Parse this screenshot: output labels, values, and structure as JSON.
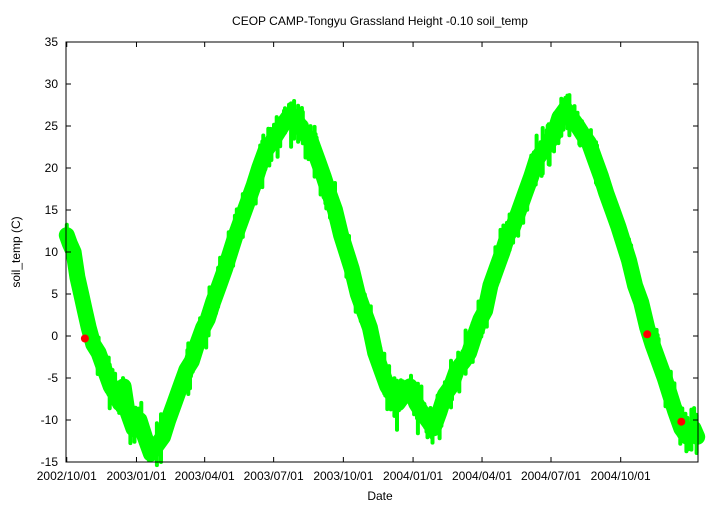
{
  "chart_data": {
    "type": "scatter",
    "title": "CEOP CAMP-Tongyu Grassland Height -0.10 soil_temp",
    "xlabel": "Date",
    "ylabel": "soil_temp (C)",
    "ylim": [
      -15,
      35
    ],
    "yticks": [
      -15,
      -10,
      -5,
      0,
      5,
      10,
      15,
      20,
      25,
      30,
      35
    ],
    "xlim": [
      "2002-09-30",
      "2005-01-11"
    ],
    "xticks": [
      "2002/10/01",
      "2003/01/01",
      "2003/04/01",
      "2003/07/01",
      "2003/10/01",
      "2004/01/01",
      "2004/04/01",
      "2004/07/01",
      "2004/10/01"
    ],
    "grid": false,
    "legend": "none",
    "colors": {
      "main": "#00ff00",
      "flagged": "#ff0000"
    },
    "series": [
      {
        "color": "#00ff00",
        "points": [
          [
            "2002-10-01",
            12
          ],
          [
            "2002-10-05",
            11
          ],
          [
            "2002-10-10",
            10
          ],
          [
            "2002-10-15",
            7
          ],
          [
            "2002-10-20",
            5
          ],
          [
            "2002-10-25",
            3
          ],
          [
            "2002-10-30",
            1
          ],
          [
            "2002-11-05",
            -1
          ],
          [
            "2002-11-12",
            -2
          ],
          [
            "2002-11-20",
            -4
          ],
          [
            "2002-11-28",
            -6
          ],
          [
            "2002-12-05",
            -7
          ],
          [
            "2002-12-10",
            -8
          ],
          [
            "2002-12-15",
            -6
          ],
          [
            "2002-12-20",
            -9
          ],
          [
            "2002-12-28",
            -11
          ],
          [
            "2003-01-05",
            -10
          ],
          [
            "2003-01-12",
            -12
          ],
          [
            "2003-01-20",
            -14
          ],
          [
            "2003-02-05",
            -12
          ],
          [
            "2003-02-12",
            -10
          ],
          [
            "2003-02-20",
            -8
          ],
          [
            "2003-02-28",
            -6
          ],
          [
            "2003-03-08",
            -4
          ],
          [
            "2003-03-15",
            -3
          ],
          [
            "2003-03-22",
            -1
          ],
          [
            "2003-03-30",
            1
          ],
          [
            "2003-04-05",
            2
          ],
          [
            "2003-04-12",
            4
          ],
          [
            "2003-04-20",
            6
          ],
          [
            "2003-04-28",
            8
          ],
          [
            "2003-05-05",
            10
          ],
          [
            "2003-05-12",
            12
          ],
          [
            "2003-05-20",
            14
          ],
          [
            "2003-05-28",
            16
          ],
          [
            "2003-06-05",
            18
          ],
          [
            "2003-06-12",
            20
          ],
          [
            "2003-06-20",
            22
          ],
          [
            "2003-06-28",
            23
          ],
          [
            "2003-07-05",
            24
          ],
          [
            "2003-07-12",
            25
          ],
          [
            "2003-07-20",
            26
          ],
          [
            "2003-07-28",
            26
          ],
          [
            "2003-08-05",
            25
          ],
          [
            "2003-08-12",
            24
          ],
          [
            "2003-08-20",
            23
          ],
          [
            "2003-08-28",
            21
          ],
          [
            "2003-09-05",
            19
          ],
          [
            "2003-09-12",
            17
          ],
          [
            "2003-09-20",
            15
          ],
          [
            "2003-09-28",
            12
          ],
          [
            "2003-10-05",
            10
          ],
          [
            "2003-10-12",
            8
          ],
          [
            "2003-10-20",
            5
          ],
          [
            "2003-10-28",
            3
          ],
          [
            "2003-11-05",
            1
          ],
          [
            "2003-11-12",
            -2
          ],
          [
            "2003-11-20",
            -4
          ],
          [
            "2003-11-28",
            -6
          ],
          [
            "2003-12-05",
            -7
          ],
          [
            "2003-12-12",
            -8
          ],
          [
            "2003-12-20",
            -7
          ],
          [
            "2003-12-28",
            -6
          ],
          [
            "2004-01-05",
            -8
          ],
          [
            "2004-01-12",
            -9
          ],
          [
            "2004-01-20",
            -10
          ],
          [
            "2004-01-28",
            -11
          ],
          [
            "2004-02-05",
            -9
          ],
          [
            "2004-02-12",
            -7
          ],
          [
            "2004-02-20",
            -6
          ],
          [
            "2004-02-28",
            -4
          ],
          [
            "2004-03-08",
            -3
          ],
          [
            "2004-03-15",
            -2
          ],
          [
            "2004-03-22",
            0
          ],
          [
            "2004-03-30",
            2
          ],
          [
            "2004-04-05",
            3
          ],
          [
            "2004-04-12",
            6
          ],
          [
            "2004-04-20",
            8
          ],
          [
            "2004-04-28",
            10
          ],
          [
            "2004-05-05",
            12
          ],
          [
            "2004-05-12",
            13
          ],
          [
            "2004-05-20",
            15
          ],
          [
            "2004-05-28",
            17
          ],
          [
            "2004-06-05",
            19
          ],
          [
            "2004-06-12",
            21
          ],
          [
            "2004-06-20",
            22
          ],
          [
            "2004-06-28",
            23
          ],
          [
            "2004-07-05",
            24
          ],
          [
            "2004-07-12",
            26
          ],
          [
            "2004-07-20",
            27
          ],
          [
            "2004-07-28",
            26
          ],
          [
            "2004-08-05",
            25
          ],
          [
            "2004-08-12",
            24
          ],
          [
            "2004-08-20",
            23
          ],
          [
            "2004-08-28",
            21
          ],
          [
            "2004-09-05",
            19
          ],
          [
            "2004-09-12",
            17
          ],
          [
            "2004-09-20",
            15
          ],
          [
            "2004-09-28",
            13
          ],
          [
            "2004-10-05",
            11
          ],
          [
            "2004-10-12",
            9
          ],
          [
            "2004-10-20",
            6
          ],
          [
            "2004-10-28",
            4
          ],
          [
            "2004-11-05",
            1
          ],
          [
            "2004-11-12",
            -1
          ],
          [
            "2004-11-20",
            -3
          ],
          [
            "2004-11-28",
            -5
          ],
          [
            "2004-12-05",
            -7
          ],
          [
            "2004-12-12",
            -9
          ],
          [
            "2004-12-20",
            -11
          ],
          [
            "2004-12-28",
            -12
          ],
          [
            "2005-01-05",
            -11
          ],
          [
            "2005-01-10",
            -12
          ]
        ]
      },
      {
        "color": "#ff0000",
        "points": [
          [
            "2002-10-25",
            -0.3
          ],
          [
            "2004-11-05",
            0.2
          ],
          [
            "2004-12-20",
            -10.2
          ]
        ]
      }
    ]
  }
}
